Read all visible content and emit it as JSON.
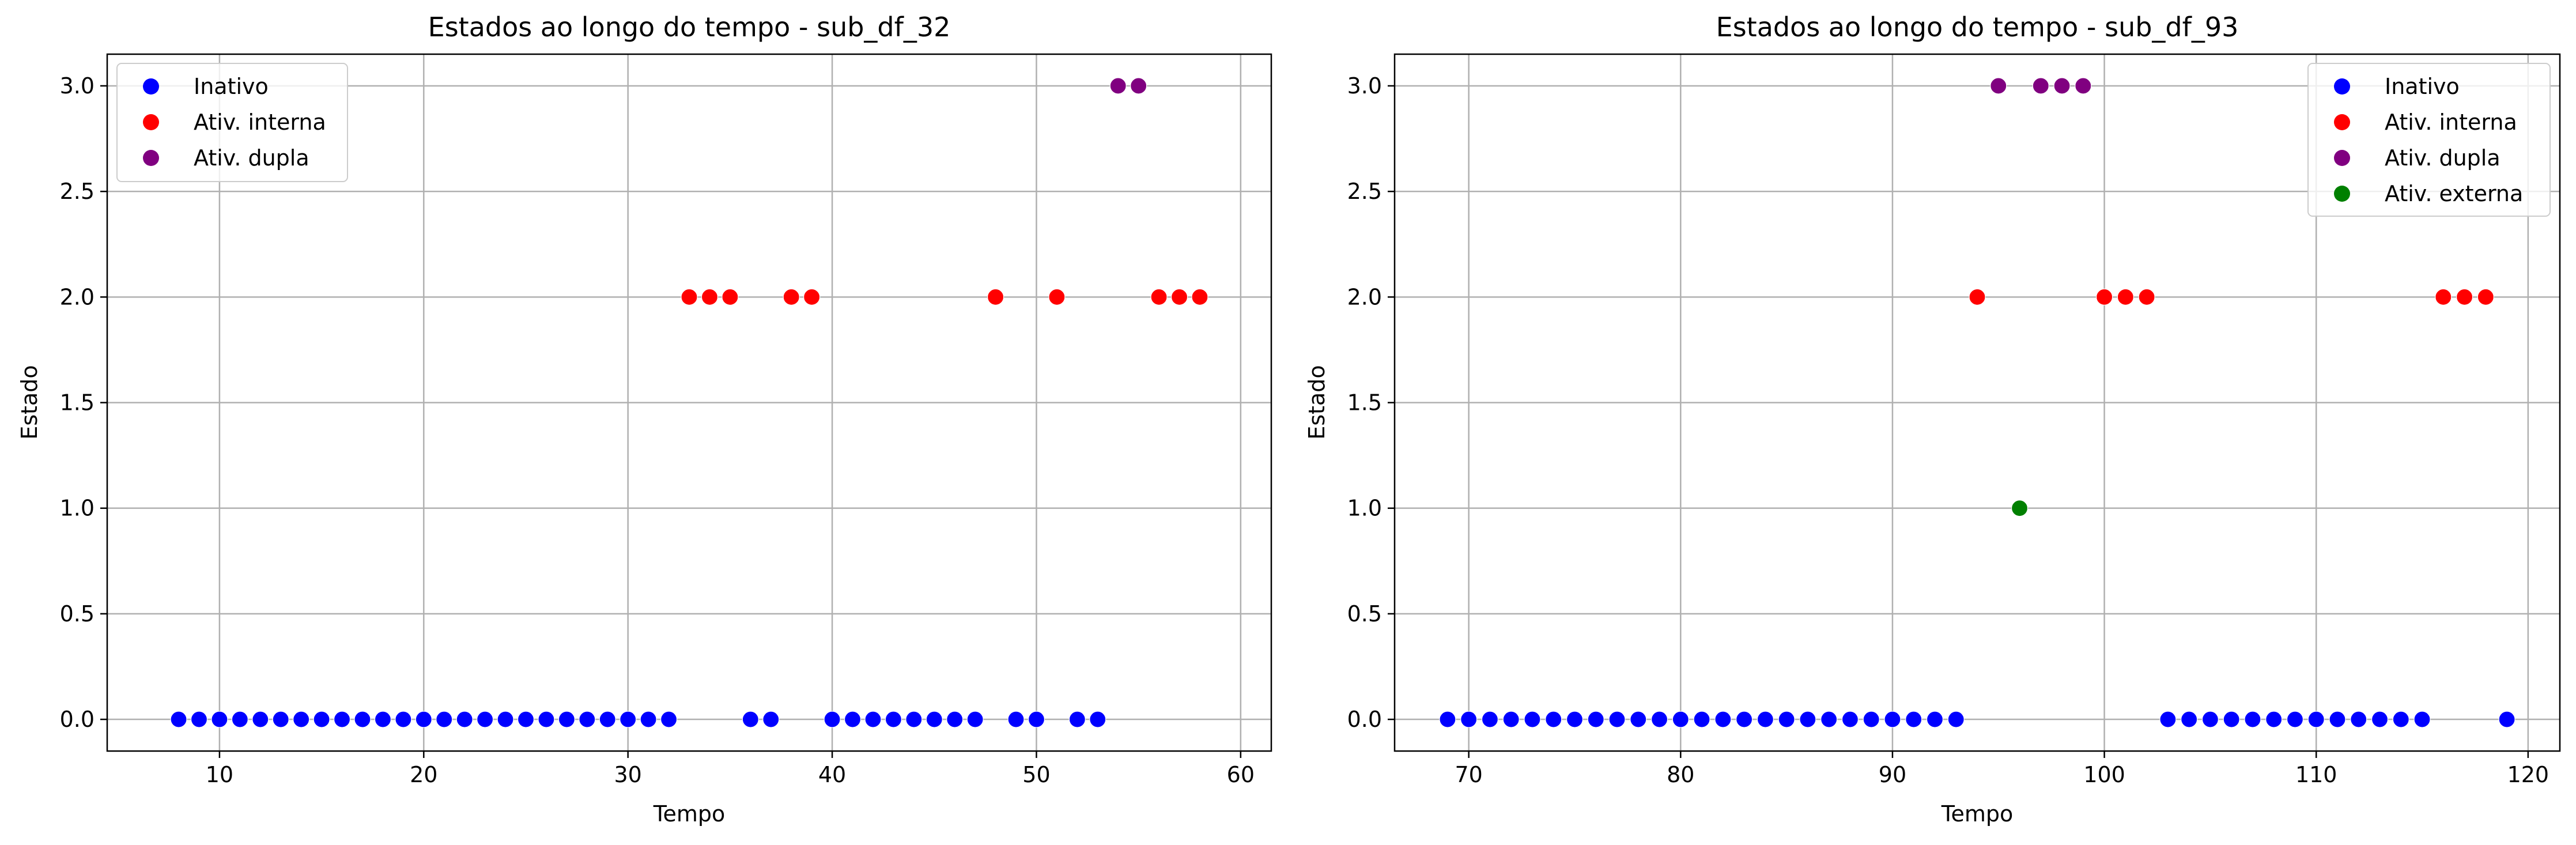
{
  "chart_data": [
    {
      "type": "scatter",
      "title": "Estados ao longo do tempo - sub_df_32",
      "xlabel": "Tempo",
      "ylabel": "Estado",
      "xlim": [
        4.5,
        61.5
      ],
      "ylim": [
        -0.15,
        3.15
      ],
      "xticks": [
        10,
        20,
        30,
        40,
        50,
        60
      ],
      "yticks": [
        0.0,
        0.5,
        1.0,
        1.5,
        2.0,
        2.5,
        3.0
      ],
      "grid": true,
      "legend_position": "top-left",
      "series": [
        {
          "name": "Inativo",
          "color": "#0000ff",
          "x": [
            8,
            9,
            10,
            11,
            12,
            13,
            14,
            15,
            16,
            17,
            18,
            19,
            20,
            21,
            22,
            23,
            24,
            25,
            26,
            27,
            28,
            29,
            30,
            31,
            32,
            36,
            37,
            40,
            41,
            42,
            43,
            44,
            45,
            46,
            47,
            49,
            50,
            52,
            53
          ],
          "y": 0
        },
        {
          "name": "Ativ. interna",
          "color": "#ff0000",
          "x": [
            33,
            34,
            35,
            38,
            39,
            48,
            51,
            56,
            57,
            58
          ],
          "y": 2
        },
        {
          "name": "Ativ. dupla",
          "color": "#800080",
          "x": [
            54,
            55
          ],
          "y": 3
        }
      ]
    },
    {
      "type": "scatter",
      "title": "Estados ao longo do tempo - sub_df_93",
      "xlabel": "Tempo",
      "ylabel": "Estado",
      "xlim": [
        66.5,
        121.5
      ],
      "ylim": [
        -0.15,
        3.15
      ],
      "xticks": [
        70,
        80,
        90,
        100,
        110,
        120
      ],
      "yticks": [
        0.0,
        0.5,
        1.0,
        1.5,
        2.0,
        2.5,
        3.0
      ],
      "grid": true,
      "legend_position": "top-right",
      "series": [
        {
          "name": "Inativo",
          "color": "#0000ff",
          "x": [
            69,
            70,
            71,
            72,
            73,
            74,
            75,
            76,
            77,
            78,
            79,
            80,
            81,
            82,
            83,
            84,
            85,
            86,
            87,
            88,
            89,
            90,
            91,
            92,
            93,
            103,
            104,
            105,
            106,
            107,
            108,
            109,
            110,
            111,
            112,
            113,
            114,
            115,
            119
          ],
          "y": 0
        },
        {
          "name": "Ativ. interna",
          "color": "#ff0000",
          "x": [
            94,
            100,
            101,
            102,
            116,
            117,
            118
          ],
          "y": 2
        },
        {
          "name": "Ativ. dupla",
          "color": "#800080",
          "x": [
            95,
            97,
            98,
            99
          ],
          "y": 3
        },
        {
          "name": "Ativ. externa",
          "color": "#008000",
          "x": [
            96
          ],
          "y": 1
        }
      ]
    }
  ]
}
